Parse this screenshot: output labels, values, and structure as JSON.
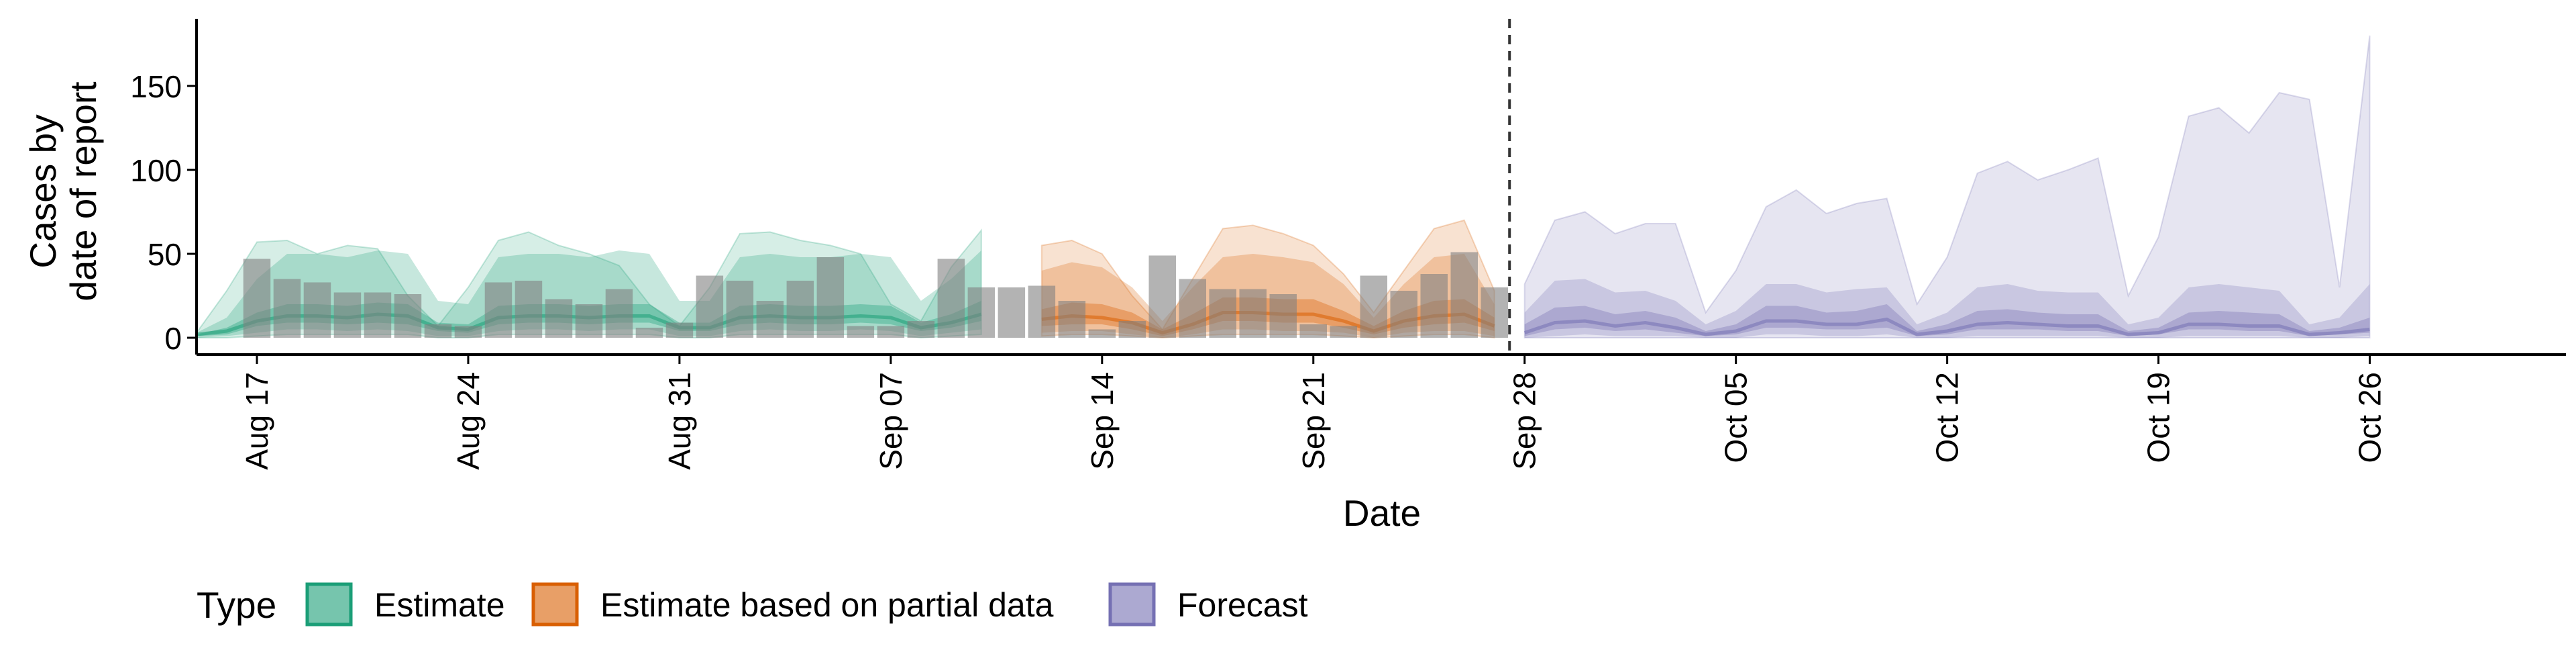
{
  "chart_data": {
    "type": "area",
    "title": "",
    "xlabel": "Date",
    "ylabel_lines": [
      "Cases by",
      "date of report"
    ],
    "ylim": [
      -10,
      190
    ],
    "yticks": [
      0,
      50,
      100,
      150
    ],
    "xlim": [
      0,
      78.5
    ],
    "x_origin_date": "Aug 15",
    "xticks": [
      {
        "label": "Aug 17",
        "day": 2
      },
      {
        "label": "Aug 24",
        "day": 9
      },
      {
        "label": "Aug 31",
        "day": 16
      },
      {
        "label": "Sep 07",
        "day": 23
      },
      {
        "label": "Sep 14",
        "day": 30
      },
      {
        "label": "Sep 21",
        "day": 37
      },
      {
        "label": "Sep 28",
        "day": 44
      },
      {
        "label": "Oct 05",
        "day": 51
      },
      {
        "label": "Oct 12",
        "day": 58
      },
      {
        "label": "Oct 19",
        "day": 65
      },
      {
        "label": "Oct 26",
        "day": 72
      }
    ],
    "forecast_start_day": 43.5,
    "legend": {
      "title": "Type",
      "placement": "bottom-left",
      "entries": [
        {
          "key": "estimate",
          "label": "Estimate",
          "color": "#1b9e77"
        },
        {
          "key": "partial",
          "label": "Estimate based on partial data",
          "color": "#d95f02"
        },
        {
          "key": "forecast",
          "label": "Forecast",
          "color": "#7570b3"
        }
      ]
    },
    "reported_cases": {
      "name": "Reported cases",
      "color": "#808080",
      "start_day": 2,
      "values": [
        47,
        35,
        33,
        27,
        27,
        26,
        8,
        7,
        33,
        34,
        23,
        20,
        29,
        6,
        9,
        37,
        34,
        22,
        34,
        48,
        7,
        7,
        10,
        47,
        30,
        30,
        31,
        22,
        5,
        10,
        49,
        35,
        29,
        29,
        26,
        8,
        7,
        37,
        28,
        38,
        51,
        30
      ]
    },
    "bands": [
      {
        "type": "estimate",
        "color": "#1b9e77",
        "days": [
          0,
          1,
          2,
          3,
          4,
          5,
          6,
          7,
          8,
          9,
          10,
          11,
          12,
          13,
          14,
          15,
          16,
          17,
          18,
          19,
          20,
          21,
          22,
          23,
          24,
          25,
          26
        ],
        "median": [
          2,
          4,
          10,
          13,
          13,
          12,
          14,
          13,
          6,
          5,
          12,
          13,
          13,
          12,
          13,
          13,
          6,
          6,
          12,
          13,
          12,
          12,
          13,
          12,
          6,
          9,
          14
        ],
        "lower_50": [
          1,
          2,
          7,
          9,
          9,
          8,
          9,
          8,
          4,
          3,
          8,
          9,
          9,
          8,
          9,
          9,
          4,
          4,
          8,
          9,
          8,
          8,
          9,
          8,
          4,
          6,
          10
        ],
        "upper_50": [
          2,
          6,
          15,
          20,
          20,
          19,
          21,
          20,
          9,
          8,
          19,
          20,
          20,
          19,
          20,
          20,
          9,
          9,
          19,
          20,
          19,
          19,
          20,
          19,
          9,
          14,
          22
        ],
        "lower_90": [
          0,
          1,
          3,
          5,
          5,
          4,
          5,
          4,
          1,
          1,
          4,
          5,
          5,
          4,
          5,
          5,
          1,
          1,
          4,
          5,
          4,
          4,
          5,
          4,
          1,
          3,
          5
        ],
        "upper_90": [
          3,
          12,
          35,
          50,
          50,
          48,
          52,
          50,
          22,
          20,
          48,
          50,
          50,
          48,
          52,
          50,
          22,
          22,
          48,
          50,
          48,
          48,
          50,
          48,
          22,
          35,
          52
        ],
        "lower_95": [
          0,
          0,
          1,
          2,
          2,
          2,
          2,
          2,
          0,
          0,
          2,
          2,
          2,
          2,
          2,
          2,
          0,
          0,
          2,
          2,
          2,
          2,
          2,
          2,
          0,
          1,
          2
        ],
        "upper_95": [
          3,
          28,
          57,
          58,
          50,
          55,
          53,
          25,
          7,
          30,
          58,
          63,
          55,
          50,
          43,
          20,
          7,
          30,
          62,
          63,
          58,
          55,
          50,
          20,
          10,
          42,
          64
        ]
      },
      {
        "type": "partial",
        "color": "#d95f02",
        "days": [
          28,
          29,
          30,
          31,
          32,
          33,
          34,
          35,
          36,
          37,
          38,
          39,
          40,
          41,
          42,
          43
        ],
        "median": [
          11,
          13,
          12,
          9,
          3,
          8,
          15,
          15,
          14,
          14,
          10,
          4,
          10,
          13,
          14,
          7
        ],
        "lower_50": [
          7,
          8,
          8,
          5,
          1,
          5,
          10,
          10,
          9,
          9,
          6,
          2,
          6,
          8,
          9,
          4
        ],
        "upper_50": [
          17,
          21,
          20,
          15,
          5,
          14,
          24,
          24,
          23,
          23,
          16,
          7,
          16,
          22,
          23,
          12
        ],
        "lower_90": [
          3,
          4,
          4,
          2,
          0,
          2,
          5,
          5,
          4,
          4,
          3,
          0,
          3,
          4,
          4,
          1
        ],
        "upper_90": [
          40,
          45,
          42,
          30,
          10,
          30,
          48,
          50,
          48,
          45,
          32,
          12,
          32,
          48,
          50,
          20
        ],
        "lower_95": [
          1,
          2,
          2,
          1,
          0,
          1,
          2,
          2,
          2,
          2,
          1,
          0,
          1,
          2,
          2,
          0
        ],
        "upper_95": [
          55,
          58,
          50,
          25,
          5,
          35,
          65,
          67,
          62,
          55,
          38,
          15,
          40,
          65,
          70,
          28
        ]
      },
      {
        "type": "forecast",
        "color": "#7570b3",
        "days": [
          44,
          45,
          46,
          47,
          48,
          49,
          50,
          51,
          52,
          53,
          54,
          55,
          56,
          57,
          58,
          59,
          60,
          61,
          62,
          63,
          64,
          65,
          66,
          67,
          68,
          69,
          70,
          71,
          72
        ],
        "median": [
          3,
          9,
          10,
          7,
          9,
          6,
          2,
          4,
          10,
          10,
          8,
          8,
          11,
          2,
          4,
          8,
          9,
          8,
          7,
          7,
          2,
          3,
          8,
          8,
          7,
          7,
          2,
          3,
          5
        ],
        "lower_50": [
          1,
          5,
          6,
          4,
          5,
          3,
          1,
          2,
          6,
          6,
          5,
          5,
          6,
          1,
          2,
          5,
          5,
          5,
          4,
          4,
          1,
          2,
          5,
          5,
          4,
          4,
          1,
          2,
          3
        ],
        "upper_50": [
          8,
          18,
          19,
          14,
          16,
          12,
          4,
          8,
          19,
          19,
          15,
          16,
          20,
          4,
          8,
          16,
          17,
          15,
          14,
          14,
          4,
          6,
          15,
          16,
          15,
          14,
          4,
          6,
          12
        ],
        "lower_90": [
          0,
          1,
          2,
          1,
          1,
          1,
          0,
          0,
          2,
          2,
          1,
          1,
          2,
          0,
          0,
          1,
          1,
          1,
          1,
          1,
          0,
          0,
          1,
          1,
          1,
          1,
          0,
          0,
          1
        ],
        "upper_90": [
          15,
          34,
          35,
          27,
          28,
          22,
          8,
          16,
          32,
          32,
          27,
          29,
          30,
          8,
          15,
          30,
          32,
          28,
          27,
          27,
          8,
          12,
          30,
          32,
          30,
          28,
          8,
          12,
          32
        ],
        "lower_95": [
          0,
          0,
          0,
          0,
          0,
          0,
          0,
          0,
          0,
          0,
          0,
          0,
          0,
          0,
          0,
          0,
          0,
          0,
          0,
          0,
          0,
          0,
          0,
          0,
          0,
          0,
          0,
          0,
          0
        ],
        "upper_95": [
          32,
          70,
          75,
          62,
          68,
          68,
          15,
          40,
          78,
          88,
          74,
          80,
          83,
          20,
          48,
          98,
          105,
          94,
          100,
          107,
          25,
          60,
          132,
          137,
          122,
          146,
          142,
          30,
          180
        ]
      }
    ]
  }
}
